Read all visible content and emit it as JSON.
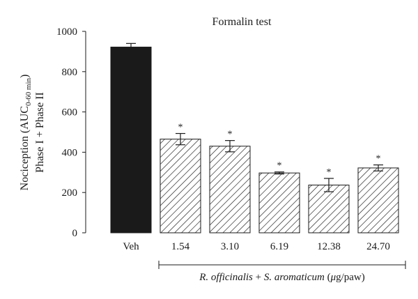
{
  "chart_data": {
    "type": "bar",
    "title": "Formalin test",
    "ylabel_line1_prefix": "Nociception (AUC",
    "ylabel_line1_sub": "0-60 min",
    "ylabel_line1_suffix": ")",
    "ylabel_line2": "Phase I + Phase II",
    "ylim": [
      0,
      1000
    ],
    "yticks": [
      0,
      200,
      400,
      600,
      800,
      1000
    ],
    "categories": [
      "Veh",
      "1.54",
      "3.10",
      "6.19",
      "12.38",
      "24.70"
    ],
    "values": [
      922,
      465,
      430,
      297,
      237,
      322
    ],
    "errors": [
      18,
      28,
      28,
      5,
      33,
      15
    ],
    "significance": [
      "",
      "*",
      "*",
      "*",
      "*",
      "*"
    ],
    "bar_styles": [
      "solid",
      "hatched",
      "hatched",
      "hatched",
      "hatched",
      "hatched"
    ],
    "group_label_italic_1": "R. officinalis",
    "group_label_plain_1": " + ",
    "group_label_italic_2": "S. aromaticum",
    "group_label_plain_2": " (",
    "group_label_mu": "μ",
    "group_label_plain_3": "g/paw)",
    "grid": false,
    "colors": {
      "solid": "#1a1a1a",
      "hatch": "#1a1a1a",
      "axis": "#1a1a1a"
    }
  }
}
